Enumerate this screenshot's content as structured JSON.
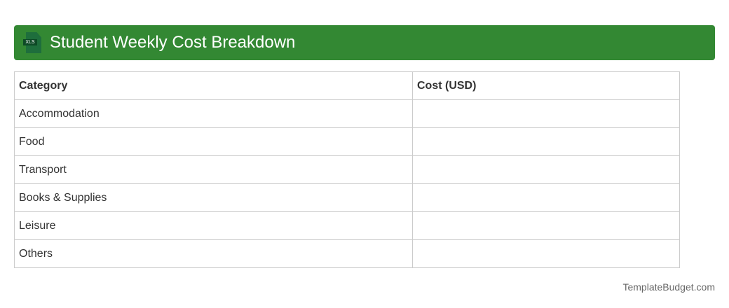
{
  "header": {
    "title": "Student Weekly Cost Breakdown",
    "icon": "xls-file-icon",
    "icon_text": "XLS",
    "color": "#338833"
  },
  "table": {
    "columns": [
      "Category",
      "Cost (USD)"
    ],
    "rows": [
      [
        "Accommodation",
        ""
      ],
      [
        "Food",
        ""
      ],
      [
        "Transport",
        ""
      ],
      [
        "Books & Supplies",
        ""
      ],
      [
        "Leisure",
        ""
      ],
      [
        "Others",
        ""
      ]
    ]
  },
  "footer": {
    "text": "TemplateBudget.com"
  }
}
